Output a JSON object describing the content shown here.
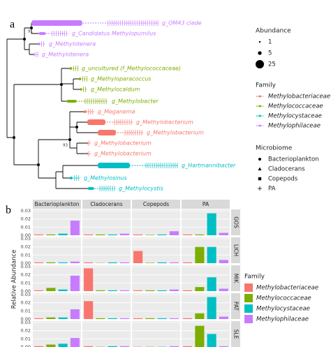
{
  "chart_data": [
    {
      "type": "tree",
      "panel_label": "a",
      "tips": [
        {
          "label": "g_OM43 clade",
          "color": "#c77cff"
        },
        {
          "label": "g_Candidatus Methylopumilus",
          "color": "#c77cff"
        },
        {
          "label": "g_Methylotenera",
          "color": "#c77cff"
        },
        {
          "label": "g_Methylotenera",
          "color": "#c77cff"
        },
        {
          "label": "g_uncultured (f_Methylococcaceae)",
          "color": "#7cae00"
        },
        {
          "label": "g_Methyloparacoccus",
          "color": "#7cae00"
        },
        {
          "label": "g_Methylocaldum",
          "color": "#7cae00"
        },
        {
          "label": "g_Methylobacter",
          "color": "#7cae00"
        },
        {
          "label": "g_Meganema",
          "color": "#f8766d"
        },
        {
          "label": "g_Methylobacterium",
          "color": "#f8766d"
        },
        {
          "label": "g_Methylobacterium",
          "color": "#f8766d"
        },
        {
          "label": "g_Methylobacterium",
          "color": "#f8766d"
        },
        {
          "label": "g_Methylobacterium",
          "color": "#f8766d"
        },
        {
          "label": "g_Hartmannibacter",
          "color": "#00bfc4"
        },
        {
          "label": "g_Methylosinus",
          "color": "#00bfc4"
        },
        {
          "label": "g_Methylocystis",
          "color": "#00bfc4"
        }
      ],
      "node_labels": [
        "91",
        "93"
      ],
      "abundance_title": "Abundance",
      "abundance_sizes": [
        1,
        5,
        25
      ],
      "family_title": "Family",
      "families": [
        {
          "name": "Methylobacteriaceae",
          "color": "#f8766d"
        },
        {
          "name": "Methylococcaceae",
          "color": "#7cae00"
        },
        {
          "name": "Methylocystaceae",
          "color": "#00bfc4"
        },
        {
          "name": "Methylophilaceae",
          "color": "#c77cff"
        }
      ],
      "microbiome_title": "Microbiome",
      "microbiomes": [
        "Bacterioplankton",
        "Cladocerans",
        "Copepods",
        "PA"
      ]
    },
    {
      "type": "facet_bar",
      "panel_label": "b",
      "ylabel": "Relative Abundance",
      "columns": [
        "Bacterioplankton",
        "Cladocerans",
        "Copepods",
        "PA"
      ],
      "rows": [
        "GOS",
        "LICH",
        "MIK",
        "PAT",
        "SLE"
      ],
      "legend_title": "Family",
      "ylim": [
        0,
        0.03
      ],
      "yticks": [
        {
          "value": 0,
          "label": "0.00"
        },
        {
          "value": 0.01,
          "label": "0.01"
        },
        {
          "value": 0.02,
          "label": "0.02"
        },
        {
          "value": 0.03,
          "label": "0.03"
        }
      ],
      "series": [
        {
          "name": "Methylobacteriaceae",
          "color": "#f8766d",
          "values": [
            [
              0.001,
              0.001,
              0.001,
              0.001
            ],
            [
              0.001,
              0.001,
              0.015,
              0.001
            ],
            [
              0.001,
              0.028,
              0.001,
              0.001
            ],
            [
              0.001,
              0.022,
              0.001,
              0.001
            ],
            [
              0.001,
              0.001,
              0.0003,
              0.001
            ]
          ]
        },
        {
          "name": "Methylococcaceae",
          "color": "#7cae00",
          "values": [
            [
              0.001,
              0.001,
              0.0005,
              0.001
            ],
            [
              0.001,
              0.0003,
              0.0005,
              0.02
            ],
            [
              0.004,
              0.001,
              0.001,
              0.005
            ],
            [
              0.002,
              0.001,
              0.001,
              0.007
            ],
            [
              0.003,
              0.0003,
              0.0003,
              0.026
            ]
          ]
        },
        {
          "name": "Methylocystaceae",
          "color": "#00bfc4",
          "values": [
            [
              0.002,
              0.001,
              0.001,
              0.027
            ],
            [
              0.001,
              0.001,
              0.001,
              0.02
            ],
            [
              0.002,
              0.001,
              0.001,
              0.017
            ],
            [
              0.002,
              0.001,
              0.001,
              0.027
            ],
            [
              0.004,
              0.001,
              0.0003,
              0.016
            ]
          ]
        },
        {
          "name": "Methylophilaceae",
          "color": "#c77cff",
          "values": [
            [
              0.018,
              0.002,
              0.005,
              0.003
            ],
            [
              0.002,
              0.001,
              0.001,
              0.004
            ],
            [
              0.019,
              0.001,
              0.002,
              0.003
            ],
            [
              0.012,
              0.001,
              0.001,
              0.003
            ],
            [
              0.011,
              0.001,
              0.001,
              0.001
            ]
          ]
        }
      ]
    }
  ]
}
